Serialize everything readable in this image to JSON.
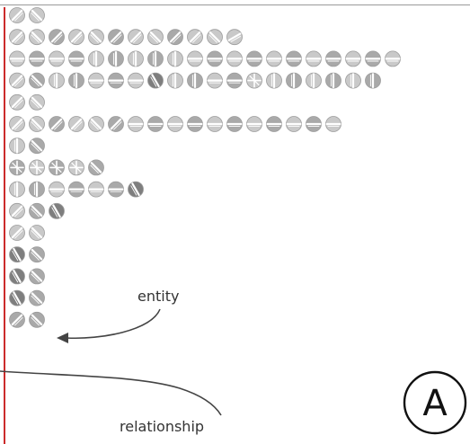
{
  "figure": {
    "label_entity": "entity",
    "label_relationship": "relationship",
    "badge_letter": "A"
  },
  "colors": {
    "axis_line": "#cc2b2b",
    "top_rule": "#9a9a9a",
    "node_light": "#c9c9c9",
    "node_mid": "#a9a9a9",
    "node_dark": "#7e7e7e",
    "node_stroke": "#9c9c9c",
    "glyph_white": "#ffffff",
    "arrow": "#444444",
    "badge_stroke": "#111111"
  },
  "rows": [
    [
      "d0",
      "s0"
    ],
    [
      "d0",
      "s0",
      "d1",
      "d0",
      "s0",
      "d1",
      "d0",
      "s0",
      "d1",
      "d0",
      "s0",
      "b0"
    ],
    [
      "h0",
      "h1",
      "h0",
      "h1",
      "v0",
      "v1",
      "v0",
      "v1",
      "v0",
      "h0",
      "h1",
      "h0",
      "h1",
      "h0",
      "h1",
      "h0",
      "h1",
      "h0",
      "h1",
      "h0"
    ],
    [
      "d0",
      "s1",
      "v0",
      "v1",
      "h0",
      "h1",
      "h0",
      "k0",
      "v0",
      "v1",
      "h0",
      "h1",
      "x0",
      "v0",
      "v1",
      "v0",
      "v1",
      "v0",
      "v1"
    ],
    [
      "d0",
      "s0"
    ],
    [
      "d0",
      "s0",
      "d1",
      "d0",
      "s0",
      "d1",
      "h0",
      "h1",
      "h0",
      "h1",
      "h0",
      "h1",
      "h0",
      "h1",
      "h0",
      "h1",
      "h0"
    ],
    [
      "v0",
      "s1"
    ],
    [
      "x1",
      "x0",
      "x1",
      "x0",
      "s1"
    ],
    [
      "v0",
      "v1",
      "h0",
      "h1",
      "h0",
      "h1",
      "k1"
    ],
    [
      "d0",
      "s1",
      "k0"
    ],
    [
      "d0",
      "s0"
    ],
    [
      "k1",
      "s1"
    ],
    [
      "k0",
      "s1"
    ],
    [
      "k1",
      "s1"
    ],
    [
      "d1",
      "s1"
    ]
  ]
}
